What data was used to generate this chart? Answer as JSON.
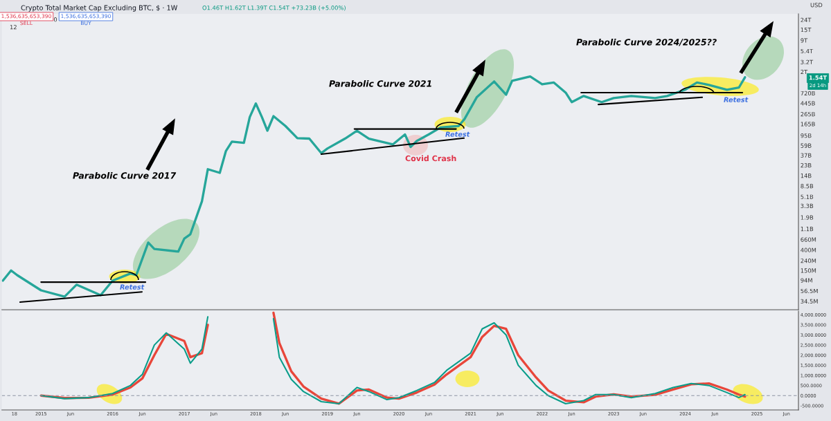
{
  "chart_data": [
    {
      "type": "line",
      "title": "Crypto Total Market Cap Excluding BTC, $ · 1W",
      "subtitle": "O1.46T H1.62T L1.39T C1.54T +73.23B (+5.00%)",
      "annotations": [
        "Parabolic Curve 2017",
        "Parabolic Curve 2021",
        "Parabolic Curve 2024/2025??",
        "Retest",
        "Retest",
        "Retest",
        "Covid Crash",
        "1,536,635,653,390",
        "SELL",
        "0",
        "1,536,635,653,390",
        "BUY",
        "12",
        "USD",
        "1.54T",
        "2d 14h"
      ],
      "series": [
        {
          "color": "#26a69a",
          "x": [
            "2014-06-20",
            "2014-08",
            "2014-09",
            "2015-01",
            "2015-05",
            "2015-07",
            "2015-11",
            "2016-01",
            "2016-04",
            "2016-05",
            "2016-07",
            "2016-08",
            "2016-12",
            "2017-01",
            "2017-02",
            "2017-04",
            "2017-05",
            "2017-07",
            "2017-08",
            "2017-09",
            "2017-11",
            "2017-12",
            "2018-01",
            "2018-02",
            "2018-03",
            "2018-04",
            "2018-06",
            "2018-08",
            "2018-10",
            "2018-12",
            "2019-01",
            "2019-04",
            "2019-06",
            "2019-08",
            "2019-12",
            "2020-02",
            "2020-03",
            "2020-04",
            "2020-06",
            "2020-08",
            "2020-11",
            "2020-12",
            "2021-02",
            "2021-05",
            "2021-07",
            "2021-08",
            "2021-11",
            "2022-01",
            "2022-03",
            "2022-05",
            "2022-06",
            "2022-08",
            "2022-11",
            "2023-01",
            "2023-04",
            "2023-08",
            "2023-10",
            "2024-01",
            "2024-03",
            "2024-05",
            "2024-08",
            "2024-10",
            "2024-11"
          ],
          "values": [
            92000000.0,
            150000000.0,
            120000000.0,
            58000000.0,
            43000000.0,
            76000000.0,
            46000000.0,
            92000000.0,
            130000000.0,
            120000000.0,
            570000000.0,
            420000000.0,
            370000000.0,
            690000000.0,
            850000000.0,
            4100000000.0,
            19000000000.0,
            16000000000.0,
            45000000000.0,
            71000000000.0,
            67000000000.0,
            230000000000.0,
            440000000000.0,
            230000000000.0,
            120000000000.0,
            240000000000.0,
            150000000000.0,
            84000000000.0,
            82000000000.0,
            41000000000.0,
            51000000000.0,
            82000000000.0,
            120000000000.0,
            82000000000.0,
            62000000000.0,
            100000000000.0,
            55000000000.0,
            73000000000.0,
            100000000000.0,
            140000000000.0,
            150000000000.0,
            210000000000.0,
            590000000000.0,
            1260000000000.0,
            670000000000.0,
            1300000000000.0,
            1600000000000.0,
            1100000000000.0,
            1200000000000.0,
            740000000000.0,
            470000000000.0,
            630000000000.0,
            470000000000.0,
            570000000000.0,
            630000000000.0,
            570000000000.0,
            630000000000.0,
            850000000000.0,
            1200000000000.0,
            1070000000000.0,
            850000000000.0,
            940000000000.0,
            1540000000000.0
          ]
        },
        {
          "color": "#000000",
          "x": [
            "2015-01-01",
            "2016-06-17"
          ],
          "values": [
            86000000.0,
            86000000.0
          ]
        },
        {
          "color": "#000000",
          "x": [
            "2014-09-16",
            "2016-05-30"
          ],
          "values": [
            33000000.0,
            54000000.0
          ]
        },
        {
          "color": "#000000",
          "x": [
            "2019-05-19",
            "2020-10-19"
          ],
          "values": [
            130000000000.0,
            130000000000.0
          ]
        },
        {
          "color": "#000000",
          "x": [
            "2018-12-01",
            "2020-11-28"
          ],
          "values": [
            39000000000.0,
            84000000000.0
          ]
        },
        {
          "color": "#000000",
          "x": [
            "2022-07-19",
            "2024-10-19"
          ],
          "values": [
            740000000000.0,
            740000000000.0
          ]
        },
        {
          "color": "#000000",
          "x": [
            "2022-10-15",
            "2024-03-28"
          ],
          "values": [
            420000000000.0,
            590000000000.0
          ]
        }
      ],
      "log": true,
      "ylim": [
        23000000.0,
        32000000000000.0
      ],
      "yticks": [
        {
          "value": 24000000000000.0,
          "label": "24T"
        },
        {
          "value": 15000000000000.0,
          "label": "15T"
        },
        {
          "value": 9000000000000.0,
          "label": "9T"
        },
        {
          "value": 5400000000000.0,
          "label": "5.4T"
        },
        {
          "value": 3200000000000.0,
          "label": "3.2T"
        },
        {
          "value": 2000000000000.0,
          "label": "2T"
        },
        {
          "value": 720000000000.0,
          "label": "720B"
        },
        {
          "value": 445000000000.0,
          "label": "445B"
        },
        {
          "value": 265000000000.0,
          "label": "265B"
        },
        {
          "value": 165000000000.0,
          "label": "165B"
        },
        {
          "value": 95000000000.0,
          "label": "95B"
        },
        {
          "value": 59000000000.0,
          "label": "59B"
        },
        {
          "value": 37000000000.0,
          "label": "37B"
        },
        {
          "value": 23000000000.0,
          "label": "23B"
        },
        {
          "value": 14000000000.0,
          "label": "14B"
        },
        {
          "value": 8500000000.0,
          "label": "8.5B"
        },
        {
          "value": 5100000000.0,
          "label": "5.1B"
        },
        {
          "value": 3300000000.0,
          "label": "3.3B"
        },
        {
          "value": 1900000000.0,
          "label": "1.9B"
        },
        {
          "value": 1100000000.0,
          "label": "1.1B"
        },
        {
          "value": 660000000.0,
          "label": "660M"
        },
        {
          "value": 400000000.0,
          "label": "400M"
        },
        {
          "value": 240000000.0,
          "label": "240M"
        },
        {
          "value": 150000000.0,
          "label": "150M"
        },
        {
          "value": 94000000.0,
          "label": "94M"
        },
        {
          "value": 56500000.0,
          "label": "56.5M"
        },
        {
          "value": 34500000.0,
          "label": "34.5M"
        }
      ],
      "xlim": [
        "2014-06-15",
        "2025-08-01"
      ],
      "xticks": [
        {
          "value": "2014-08-18",
          "label": null
        },
        {
          "value": "2015-01-01",
          "label": null
        },
        {
          "value": "2016-01-01",
          "label": null
        },
        {
          "value": "2017-01-01",
          "label": null
        },
        {
          "value": "2018-01-01",
          "label": null
        },
        {
          "value": "2019-01-01",
          "label": null
        },
        {
          "value": "2020-01-01",
          "label": null
        },
        {
          "value": "2021-01-01",
          "label": null
        },
        {
          "value": "2022-01-01",
          "label": null
        },
        {
          "value": "2023-01-01",
          "label": null
        },
        {
          "value": "2024-01-01",
          "label": null
        },
        {
          "value": "2025-01-01",
          "label": null
        }
      ],
      "tick_labels": "y"
    },
    {
      "type": "line",
      "x": [
        "2015-01",
        "2015-05",
        "2015-09",
        "2016-01",
        "2016-04",
        "2016-06",
        "2016-08",
        "2016-10",
        "2017-01",
        "2017-02",
        "2017-04",
        "2017-05",
        "2017-07",
        "2018-04",
        "2018-05",
        "2018-07",
        "2018-09",
        "2018-12",
        "2019-03",
        "2019-06",
        "2019-08",
        "2019-11",
        "2020-01",
        "2020-04",
        "2020-07",
        "2020-09",
        "2021-01",
        "2021-03",
        "2021-05",
        "2021-07",
        "2021-09",
        "2021-12",
        "2022-02",
        "2022-05",
        "2022-08",
        "2022-10",
        "2023-01",
        "2023-04",
        "2023-08",
        "2023-11",
        "2024-02",
        "2024-05",
        "2024-08",
        "2024-10",
        "2024-11"
      ],
      "series": [
        {
          "color": "#e8463a",
          "values": [
            0,
            -120,
            -110,
            50,
            400,
            850,
            2000,
            3050,
            2700,
            1900,
            2100,
            3500,
            null,
            4100,
            2600,
            1200,
            450,
            -150,
            -400,
            250,
            300,
            -100,
            -150,
            150,
            550,
            1050,
            1900,
            2900,
            3450,
            3300,
            2000,
            900,
            250,
            -250,
            -330,
            -50,
            60,
            -50,
            40,
            300,
            560,
            600,
            300,
            50,
            -50
          ]
        },
        {
          "color": "#0a9d8a",
          "values": [
            0,
            -150,
            -100,
            100,
            500,
            1050,
            2500,
            3100,
            2300,
            1600,
            2300,
            3900,
            null,
            3800,
            1900,
            800,
            200,
            -300,
            -400,
            400,
            200,
            -200,
            -100,
            250,
            650,
            1250,
            2100,
            3300,
            3600,
            3000,
            1500,
            500,
            0,
            -400,
            -250,
            50,
            50,
            -100,
            100,
            400,
            600,
            500,
            150,
            -100,
            50
          ]
        }
      ],
      "ylim": [
        -710,
        4180
      ],
      "yticks": [
        {
          "value": 4000,
          "label": "4,000.0000"
        },
        {
          "value": 3500,
          "label": "3,500.0000"
        },
        {
          "value": 3000,
          "label": "3,000.0000"
        },
        {
          "value": 2500,
          "label": "2,500.0000"
        },
        {
          "value": 2000,
          "label": "2,000.0000"
        },
        {
          "value": 1500,
          "label": "1,500.0000"
        },
        {
          "value": 1000,
          "label": "1,000.0000"
        },
        {
          "value": 500,
          "label": "500.0000"
        },
        {
          "value": 0,
          "label": "0.0000"
        },
        {
          "value": -500,
          "label": "-500.0000"
        }
      ],
      "xlim": [
        "2014-06-15",
        "2025-08-01"
      ],
      "xticks": [
        {
          "value": "2014-08-18",
          "label": "18"
        },
        {
          "value": "2015-01-01",
          "label": "2015"
        },
        {
          "value": "2015-06-01",
          "label": "Jun"
        },
        {
          "value": "2016-01-01",
          "label": "2016"
        },
        {
          "value": "2016-06-01",
          "label": "Jun"
        },
        {
          "value": "2017-01-01",
          "label": "2017"
        },
        {
          "value": "2017-06-01",
          "label": "Jun"
        },
        {
          "value": "2018-01-01",
          "label": "2018"
        },
        {
          "value": "2018-06-01",
          "label": "Jun"
        },
        {
          "value": "2019-01-01",
          "label": "2019"
        },
        {
          "value": "2019-06-01",
          "label": "Jun"
        },
        {
          "value": "2020-01-01",
          "label": "2020"
        },
        {
          "value": "2020-06-01",
          "label": "Jun"
        },
        {
          "value": "2021-01-01",
          "label": "2021"
        },
        {
          "value": "2021-06-01",
          "label": "Jun"
        },
        {
          "value": "2022-01-01",
          "label": "2022"
        },
        {
          "value": "2022-06-01",
          "label": "Jun"
        },
        {
          "value": "2023-01-01",
          "label": "2023"
        },
        {
          "value": "2023-06-01",
          "label": "Jun"
        },
        {
          "value": "2024-01-01",
          "label": "2024"
        },
        {
          "value": "2024-06-01",
          "label": "Jun"
        },
        {
          "value": "2025-01-01",
          "label": "2025"
        },
        {
          "value": "2025-06-01",
          "label": "Jun"
        }
      ],
      "ref_lines": [
        {
          "axis": "y",
          "value": 0,
          "label": null,
          "color": "#8c93a3",
          "line_style": "dashed"
        }
      ]
    }
  ]
}
